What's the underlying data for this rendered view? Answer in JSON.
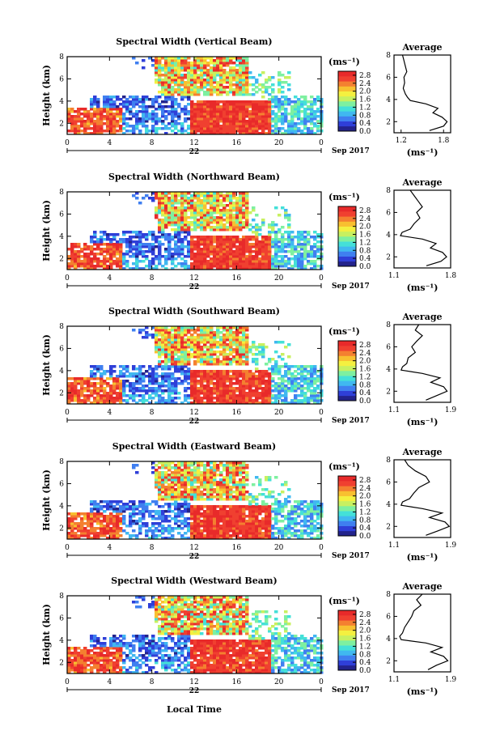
{
  "figure": {
    "xlabel": "Local Time",
    "date_label": "Sep 2017",
    "day_label": "22",
    "colorbar_unit": "(ms⁻¹)",
    "avg_title": "Average",
    "avg_xlabel": "(ms⁻¹)",
    "colors": {
      "scale": [
        "#23238c",
        "#2f3fd8",
        "#3f7ff0",
        "#40b8f0",
        "#44e0d8",
        "#7ef0a0",
        "#c8f060",
        "#f4f040",
        "#f8c030",
        "#f48030",
        "#f04030",
        "#e82a2a"
      ],
      "text": "#000000"
    }
  },
  "chart_data": [
    {
      "type": "heatmap",
      "title": "Spectral Width (Vertical Beam)",
      "ylabel": "Height (km)",
      "xticks": [
        "0",
        "4",
        "8",
        "12",
        "16",
        "20",
        "0"
      ],
      "yticks": [
        "2",
        "4",
        "6",
        "8"
      ],
      "xlim": [
        0,
        24
      ],
      "ylim": [
        1,
        8
      ],
      "colorbar_ticks": [
        "0.0",
        "0.4",
        "0.8",
        "1.2",
        "1.6",
        "2.0",
        "2.4",
        "2.8"
      ],
      "colorbar_range": [
        0,
        3.0
      ],
      "average": {
        "xticks": [
          "1.2",
          "1.8"
        ],
        "xlim": [
          1.1,
          1.9
        ],
        "yticks": [
          "2",
          "4",
          "6",
          "8"
        ],
        "ylim": [
          1,
          8
        ],
        "x": [
          1.22,
          1.24,
          1.26,
          1.28,
          1.24,
          1.25,
          1.23,
          1.26,
          1.29,
          1.33,
          1.55,
          1.72,
          1.65,
          1.78,
          1.85,
          1.8,
          1.6
        ],
        "y": [
          8.0,
          7.5,
          7.0,
          6.5,
          6.0,
          5.5,
          5.0,
          4.5,
          4.2,
          3.9,
          3.6,
          3.2,
          2.8,
          2.4,
          2.0,
          1.6,
          1.2
        ]
      }
    },
    {
      "type": "heatmap",
      "title": "Spectral Width (Northward Beam)",
      "ylabel": "Height (km)",
      "xticks": [
        "0",
        "4",
        "8",
        "12",
        "16",
        "20",
        "0"
      ],
      "yticks": [
        "2",
        "4",
        "6",
        "8"
      ],
      "xlim": [
        0,
        24
      ],
      "ylim": [
        1,
        8
      ],
      "colorbar_ticks": [
        "0.0",
        "0.4",
        "0.8",
        "1.2",
        "1.6",
        "2.0",
        "2.4",
        "2.8"
      ],
      "colorbar_range": [
        0,
        3.0
      ],
      "average": {
        "xticks": [
          "1.1",
          "1.8"
        ],
        "xlim": [
          1.1,
          1.8
        ],
        "yticks": [
          "2",
          "4",
          "6",
          "8"
        ],
        "ylim": [
          1,
          8
        ],
        "x": [
          1.3,
          1.35,
          1.4,
          1.45,
          1.38,
          1.42,
          1.35,
          1.3,
          1.2,
          1.18,
          1.45,
          1.62,
          1.55,
          1.7,
          1.75,
          1.68,
          1.5
        ],
        "y": [
          8.0,
          7.5,
          7.0,
          6.5,
          6.0,
          5.5,
          5.0,
          4.5,
          4.2,
          3.9,
          3.6,
          3.2,
          2.8,
          2.4,
          2.0,
          1.6,
          1.2
        ]
      }
    },
    {
      "type": "heatmap",
      "title": "Spectral Width (Southward Beam)",
      "ylabel": "Height (km)",
      "xticks": [
        "0",
        "4",
        "8",
        "12",
        "16",
        "20",
        "0"
      ],
      "yticks": [
        "2",
        "4",
        "6",
        "8"
      ],
      "xlim": [
        0,
        24
      ],
      "ylim": [
        1,
        8
      ],
      "colorbar_ticks": [
        "0.0",
        "0.4",
        "0.8",
        "1.2",
        "1.6",
        "2.0",
        "2.4",
        "2.8"
      ],
      "colorbar_range": [
        0,
        3.0
      ],
      "average": {
        "xticks": [
          "1.1",
          "1.9"
        ],
        "xlim": [
          1.1,
          1.9
        ],
        "yticks": [
          "2",
          "4",
          "6",
          "8"
        ],
        "ylim": [
          1,
          8
        ],
        "x": [
          1.45,
          1.4,
          1.5,
          1.42,
          1.35,
          1.4,
          1.3,
          1.28,
          1.22,
          1.2,
          1.5,
          1.75,
          1.62,
          1.8,
          1.85,
          1.7,
          1.55
        ],
        "y": [
          8.0,
          7.5,
          7.0,
          6.5,
          6.0,
          5.5,
          5.0,
          4.5,
          4.2,
          3.9,
          3.6,
          3.2,
          2.8,
          2.4,
          2.0,
          1.6,
          1.2
        ]
      }
    },
    {
      "type": "heatmap",
      "title": "Spectral Width (Eastward Beam)",
      "ylabel": "Height (km)",
      "xticks": [
        "0",
        "4",
        "8",
        "12",
        "16",
        "20",
        "0"
      ],
      "yticks": [
        "2",
        "4",
        "6",
        "8"
      ],
      "xlim": [
        0,
        24
      ],
      "ylim": [
        1,
        8
      ],
      "colorbar_ticks": [
        "0.0",
        "0.4",
        "0.8",
        "1.2",
        "1.6",
        "2.0",
        "2.4",
        "2.8"
      ],
      "colorbar_range": [
        0,
        3.0
      ],
      "average": {
        "xticks": [
          "1.1",
          "1.9"
        ],
        "xlim": [
          1.1,
          1.9
        ],
        "yticks": [
          "2",
          "4",
          "6",
          "8"
        ],
        "ylim": [
          1,
          8
        ],
        "x": [
          1.25,
          1.3,
          1.4,
          1.55,
          1.6,
          1.45,
          1.38,
          1.32,
          1.22,
          1.2,
          1.5,
          1.78,
          1.6,
          1.82,
          1.88,
          1.72,
          1.55
        ],
        "y": [
          8.0,
          7.5,
          7.0,
          6.5,
          6.0,
          5.5,
          5.0,
          4.5,
          4.2,
          3.9,
          3.6,
          3.2,
          2.8,
          2.4,
          2.0,
          1.6,
          1.2
        ]
      }
    },
    {
      "type": "heatmap",
      "title": "Spectral Width (Westward Beam)",
      "ylabel": "Height (km)",
      "xticks": [
        "0",
        "4",
        "8",
        "12",
        "16",
        "20",
        "0"
      ],
      "yticks": [
        "2",
        "4",
        "6",
        "8"
      ],
      "xlim": [
        0,
        24
      ],
      "ylim": [
        1,
        8
      ],
      "colorbar_ticks": [
        "0.0",
        "0.4",
        "0.8",
        "1.2",
        "1.6",
        "2.0",
        "2.4",
        "2.8"
      ],
      "colorbar_range": [
        0,
        3.0
      ],
      "average": {
        "xticks": [
          "1.1",
          "1.9"
        ],
        "xlim": [
          1.1,
          1.9
        ],
        "yticks": [
          "2",
          "4",
          "6",
          "8"
        ],
        "ylim": [
          1,
          8
        ],
        "x": [
          1.5,
          1.42,
          1.48,
          1.38,
          1.35,
          1.3,
          1.25,
          1.22,
          1.18,
          1.2,
          1.55,
          1.78,
          1.62,
          1.8,
          1.86,
          1.7,
          1.58
        ],
        "y": [
          8.0,
          7.5,
          7.0,
          6.5,
          6.0,
          5.5,
          5.0,
          4.5,
          4.2,
          3.9,
          3.6,
          3.2,
          2.8,
          2.4,
          2.0,
          1.6,
          1.2
        ]
      }
    }
  ]
}
